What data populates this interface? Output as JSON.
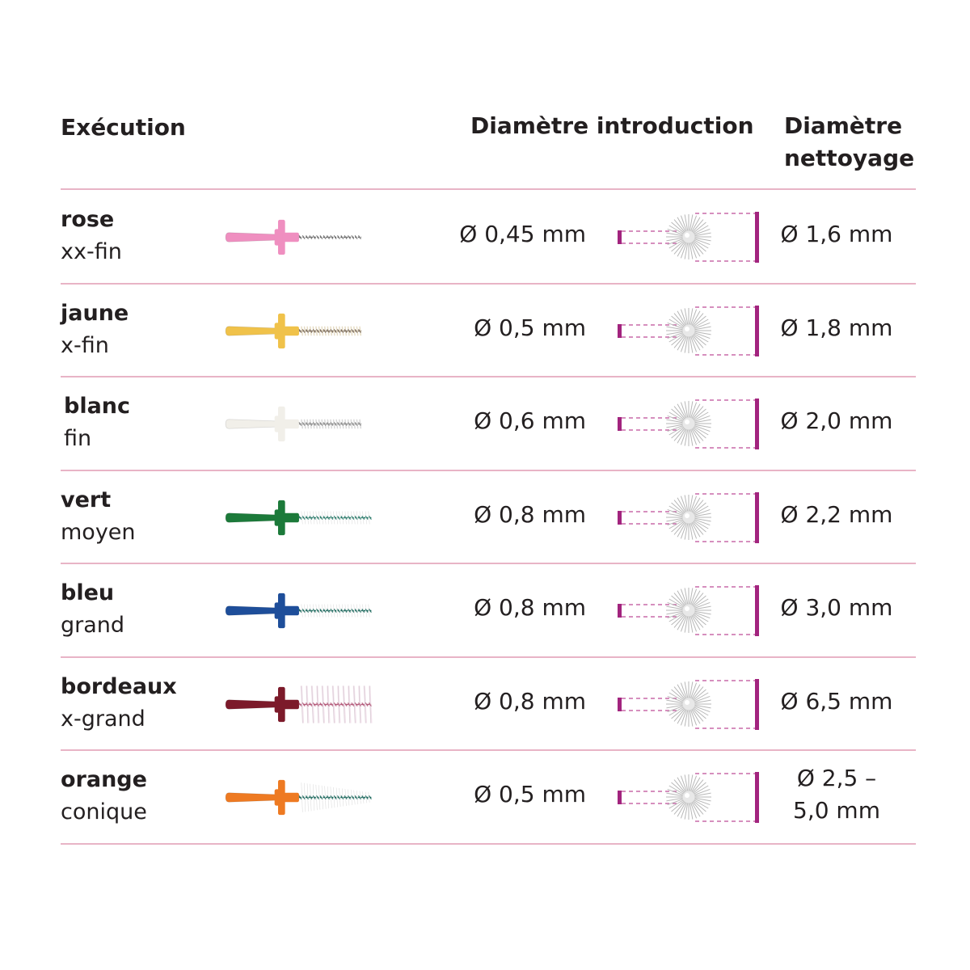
{
  "headers": {
    "execution": "Exécution",
    "intro_diameter": "Diamètre introduction",
    "clean_diameter": "Diamètre nettoyage"
  },
  "colors": {
    "separator": "#e8b4c6",
    "accent": "#a2247e",
    "dash": "#c86aa8"
  },
  "rows": [
    {
      "name": "rose",
      "size": "xx-fin",
      "intro": "Ø 0,45 mm",
      "clean": "Ø 1,6 mm",
      "color": "#ef8fc0",
      "bristle": "#ffffff",
      "wire": "#6a6a6a",
      "kind": "fine"
    },
    {
      "name": "jaune",
      "size": "x-fin",
      "intro": "Ø 0,5 mm",
      "clean": "Ø 1,8 mm",
      "color": "#f0c24a",
      "bristle": "#e6dcc4",
      "wire": "#7a6a5a",
      "kind": "fine"
    },
    {
      "name": "blanc",
      "size": "fin",
      "intro": "Ø 0,6 mm",
      "clean": "Ø 2,0 mm",
      "color": "#f1efe9",
      "bristle": "#d8d8d8",
      "wire": "#8a8a8a",
      "kind": "fine"
    },
    {
      "name": "vert",
      "size": "moyen",
      "intro": "Ø 0,8 mm",
      "clean": "Ø 2,2 mm",
      "color": "#1c7a3a",
      "bristle": "#ffffff",
      "wire": "#2a7a6a",
      "kind": "medium"
    },
    {
      "name": "bleu",
      "size": "grand",
      "intro": "Ø 0,8 mm",
      "clean": "Ø 3,0 mm",
      "color": "#1e4e9a",
      "bristle": "#ffffff",
      "wire": "#1f6a5f",
      "kind": "medium"
    },
    {
      "name": "bordeaux",
      "size": "x-grand",
      "intro": "Ø 0,8 mm",
      "clean": "Ø 6,5 mm",
      "color": "#7c1a2a",
      "bristle": "#f2e2ec",
      "wire": "#b45a7a",
      "kind": "large"
    },
    {
      "name": "orange",
      "size": "conique",
      "intro": "Ø 0,5 mm",
      "clean": "Ø 2,5 – 5,0 mm",
      "color": "#ee7a22",
      "bristle": "#ffffff",
      "wire": "#1f6a5f",
      "kind": "conical"
    }
  ]
}
